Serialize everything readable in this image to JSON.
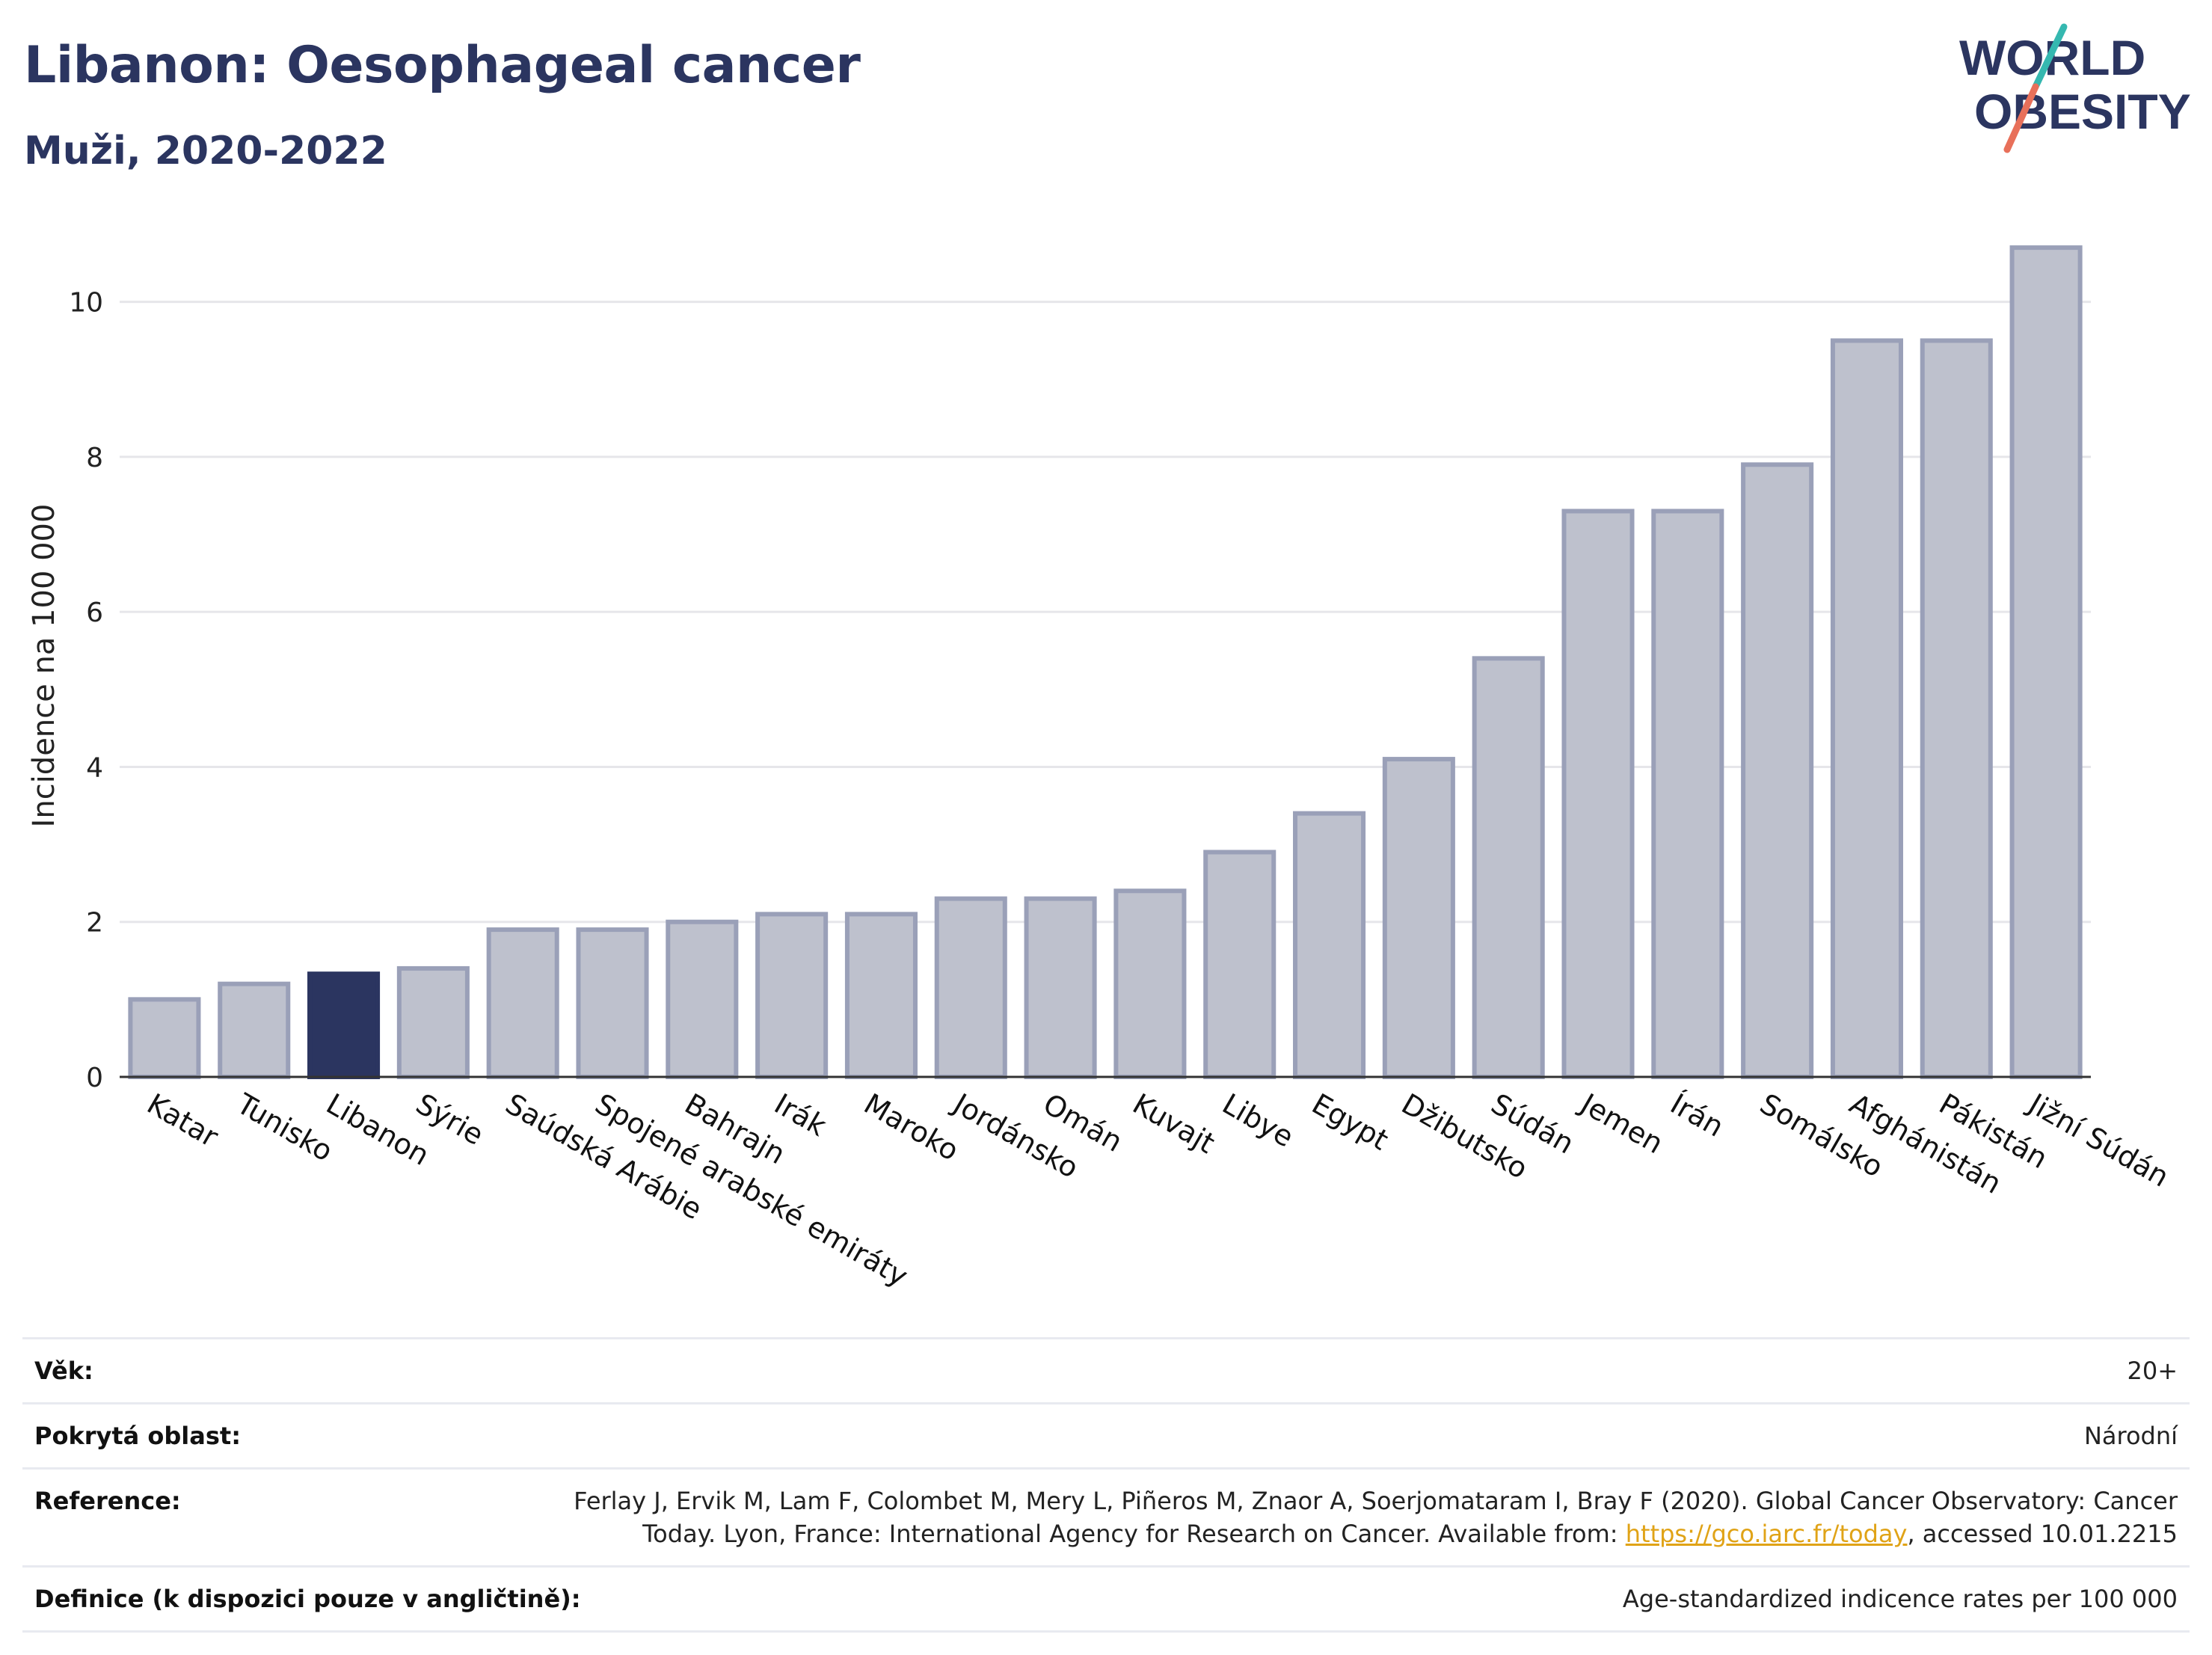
{
  "header": {
    "title": "Libanon: Oesophageal cancer",
    "subtitle": "Muži, 2020-2022"
  },
  "logo": {
    "line1": "WORLD",
    "line2": "OBESITY",
    "text_color": "#2b3560",
    "slash_colors": [
      "#35b8b0",
      "#e8705a"
    ]
  },
  "colors": {
    "bar_default": "#bec1cd",
    "bar_default_stroke": "#9aa0b8",
    "bar_highlight": "#2b3560",
    "axis": "#333333",
    "grid": "#e6e6ea"
  },
  "chart_data": {
    "type": "bar",
    "ylabel": "Incidence na 100 000",
    "ylim": [
      0,
      11
    ],
    "yticks": [
      0,
      2,
      4,
      6,
      8,
      10
    ],
    "grid": true,
    "highlight": "Libanon",
    "categories": [
      "Katar",
      "Tunisko",
      "Libanon",
      "Sýrie",
      "Saúdská Arábie",
      "Spojené arabské emiráty",
      "Bahrajn",
      "Irák",
      "Maroko",
      "Jordánsko",
      "Omán",
      "Kuvajt",
      "Libye",
      "Egypt",
      "Džibutsko",
      "Súdán",
      "Jemen",
      "Írán",
      "Somálsko",
      "Afghánistán",
      "Pákistán",
      "Jižní Súdán"
    ],
    "values": [
      1.0,
      1.2,
      1.33,
      1.4,
      1.9,
      1.9,
      2.0,
      2.1,
      2.1,
      2.3,
      2.3,
      2.4,
      2.9,
      3.4,
      4.1,
      5.4,
      7.3,
      7.3,
      7.9,
      9.5,
      9.5,
      10.7
    ]
  },
  "info": {
    "age_label": "Věk:",
    "age_value": "20+",
    "area_label": "Pokrytá oblast:",
    "area_value": "Národní",
    "reference_label": "Reference:",
    "reference_text_1": "Ferlay J, Ervik M, Lam F, Colombet M, Mery L, Piñeros M, Znaor A, Soerjomataram I, Bray F (2020). Global Cancer Observatory: Cancer",
    "reference_text_2": "Today. Lyon, France: International Agency for Research on Cancer. Available from:",
    "reference_link": "https://gco.iarc.fr/today",
    "reference_text_3": ", accessed 10.01.2215",
    "definition_label": "Definice (k dispozici pouze v angličtině):",
    "definition_value": "Age-standardized indicence rates per 100 000"
  }
}
